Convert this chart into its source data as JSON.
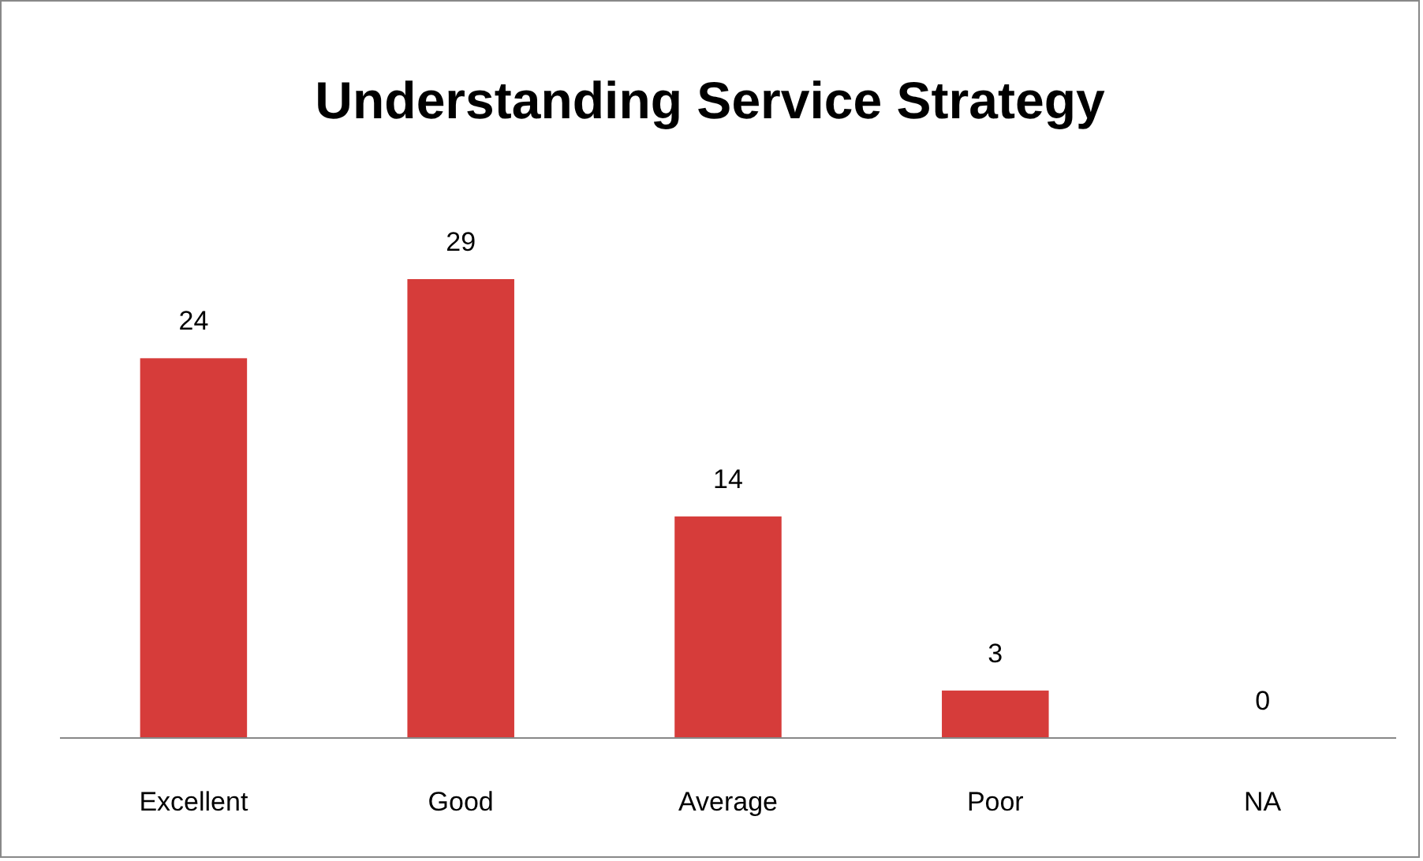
{
  "chart_data": {
    "type": "bar",
    "title": "Understanding Service Strategy",
    "categories": [
      "Excellent",
      "Good",
      "Average",
      "Poor",
      "NA"
    ],
    "values": [
      24,
      29,
      14,
      3,
      0
    ],
    "color": "#d63c3a",
    "data_labels": true,
    "grid": false
  }
}
